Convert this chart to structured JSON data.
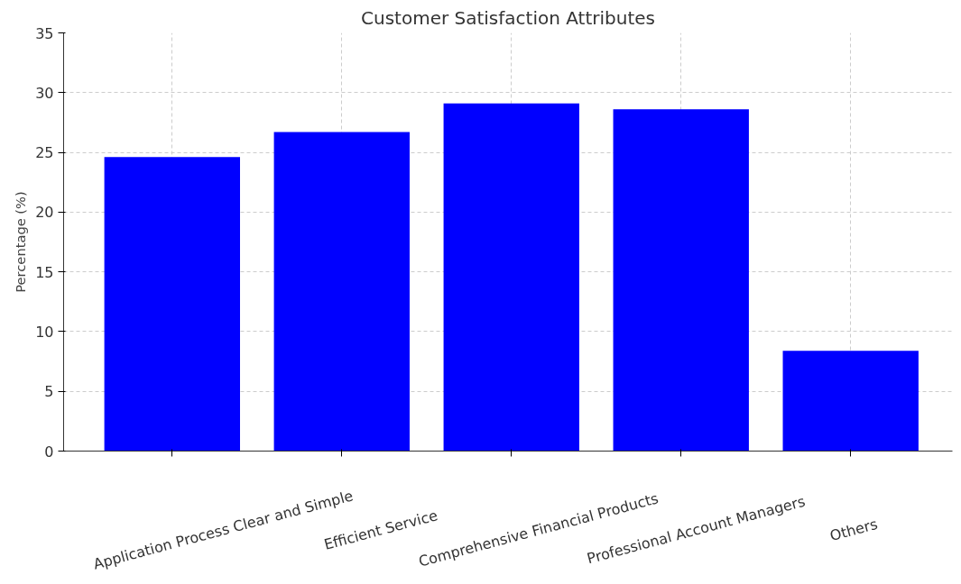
{
  "chart_data": {
    "type": "bar",
    "title": "Customer Satisfaction Attributes",
    "ylabel": "Percentage (%)",
    "categories": [
      "Application Process Clear and Simple",
      "Efficient Service",
      "Comprehensive Financial Products",
      "Professional Account Managers",
      "Others"
    ],
    "values": [
      24.6,
      26.7,
      29.1,
      28.6,
      8.4
    ],
    "color": "#0000ff",
    "ylim": [
      0,
      35
    ],
    "yticks": [
      0,
      5,
      10,
      15,
      20,
      25,
      30,
      35
    ],
    "grid": true
  }
}
